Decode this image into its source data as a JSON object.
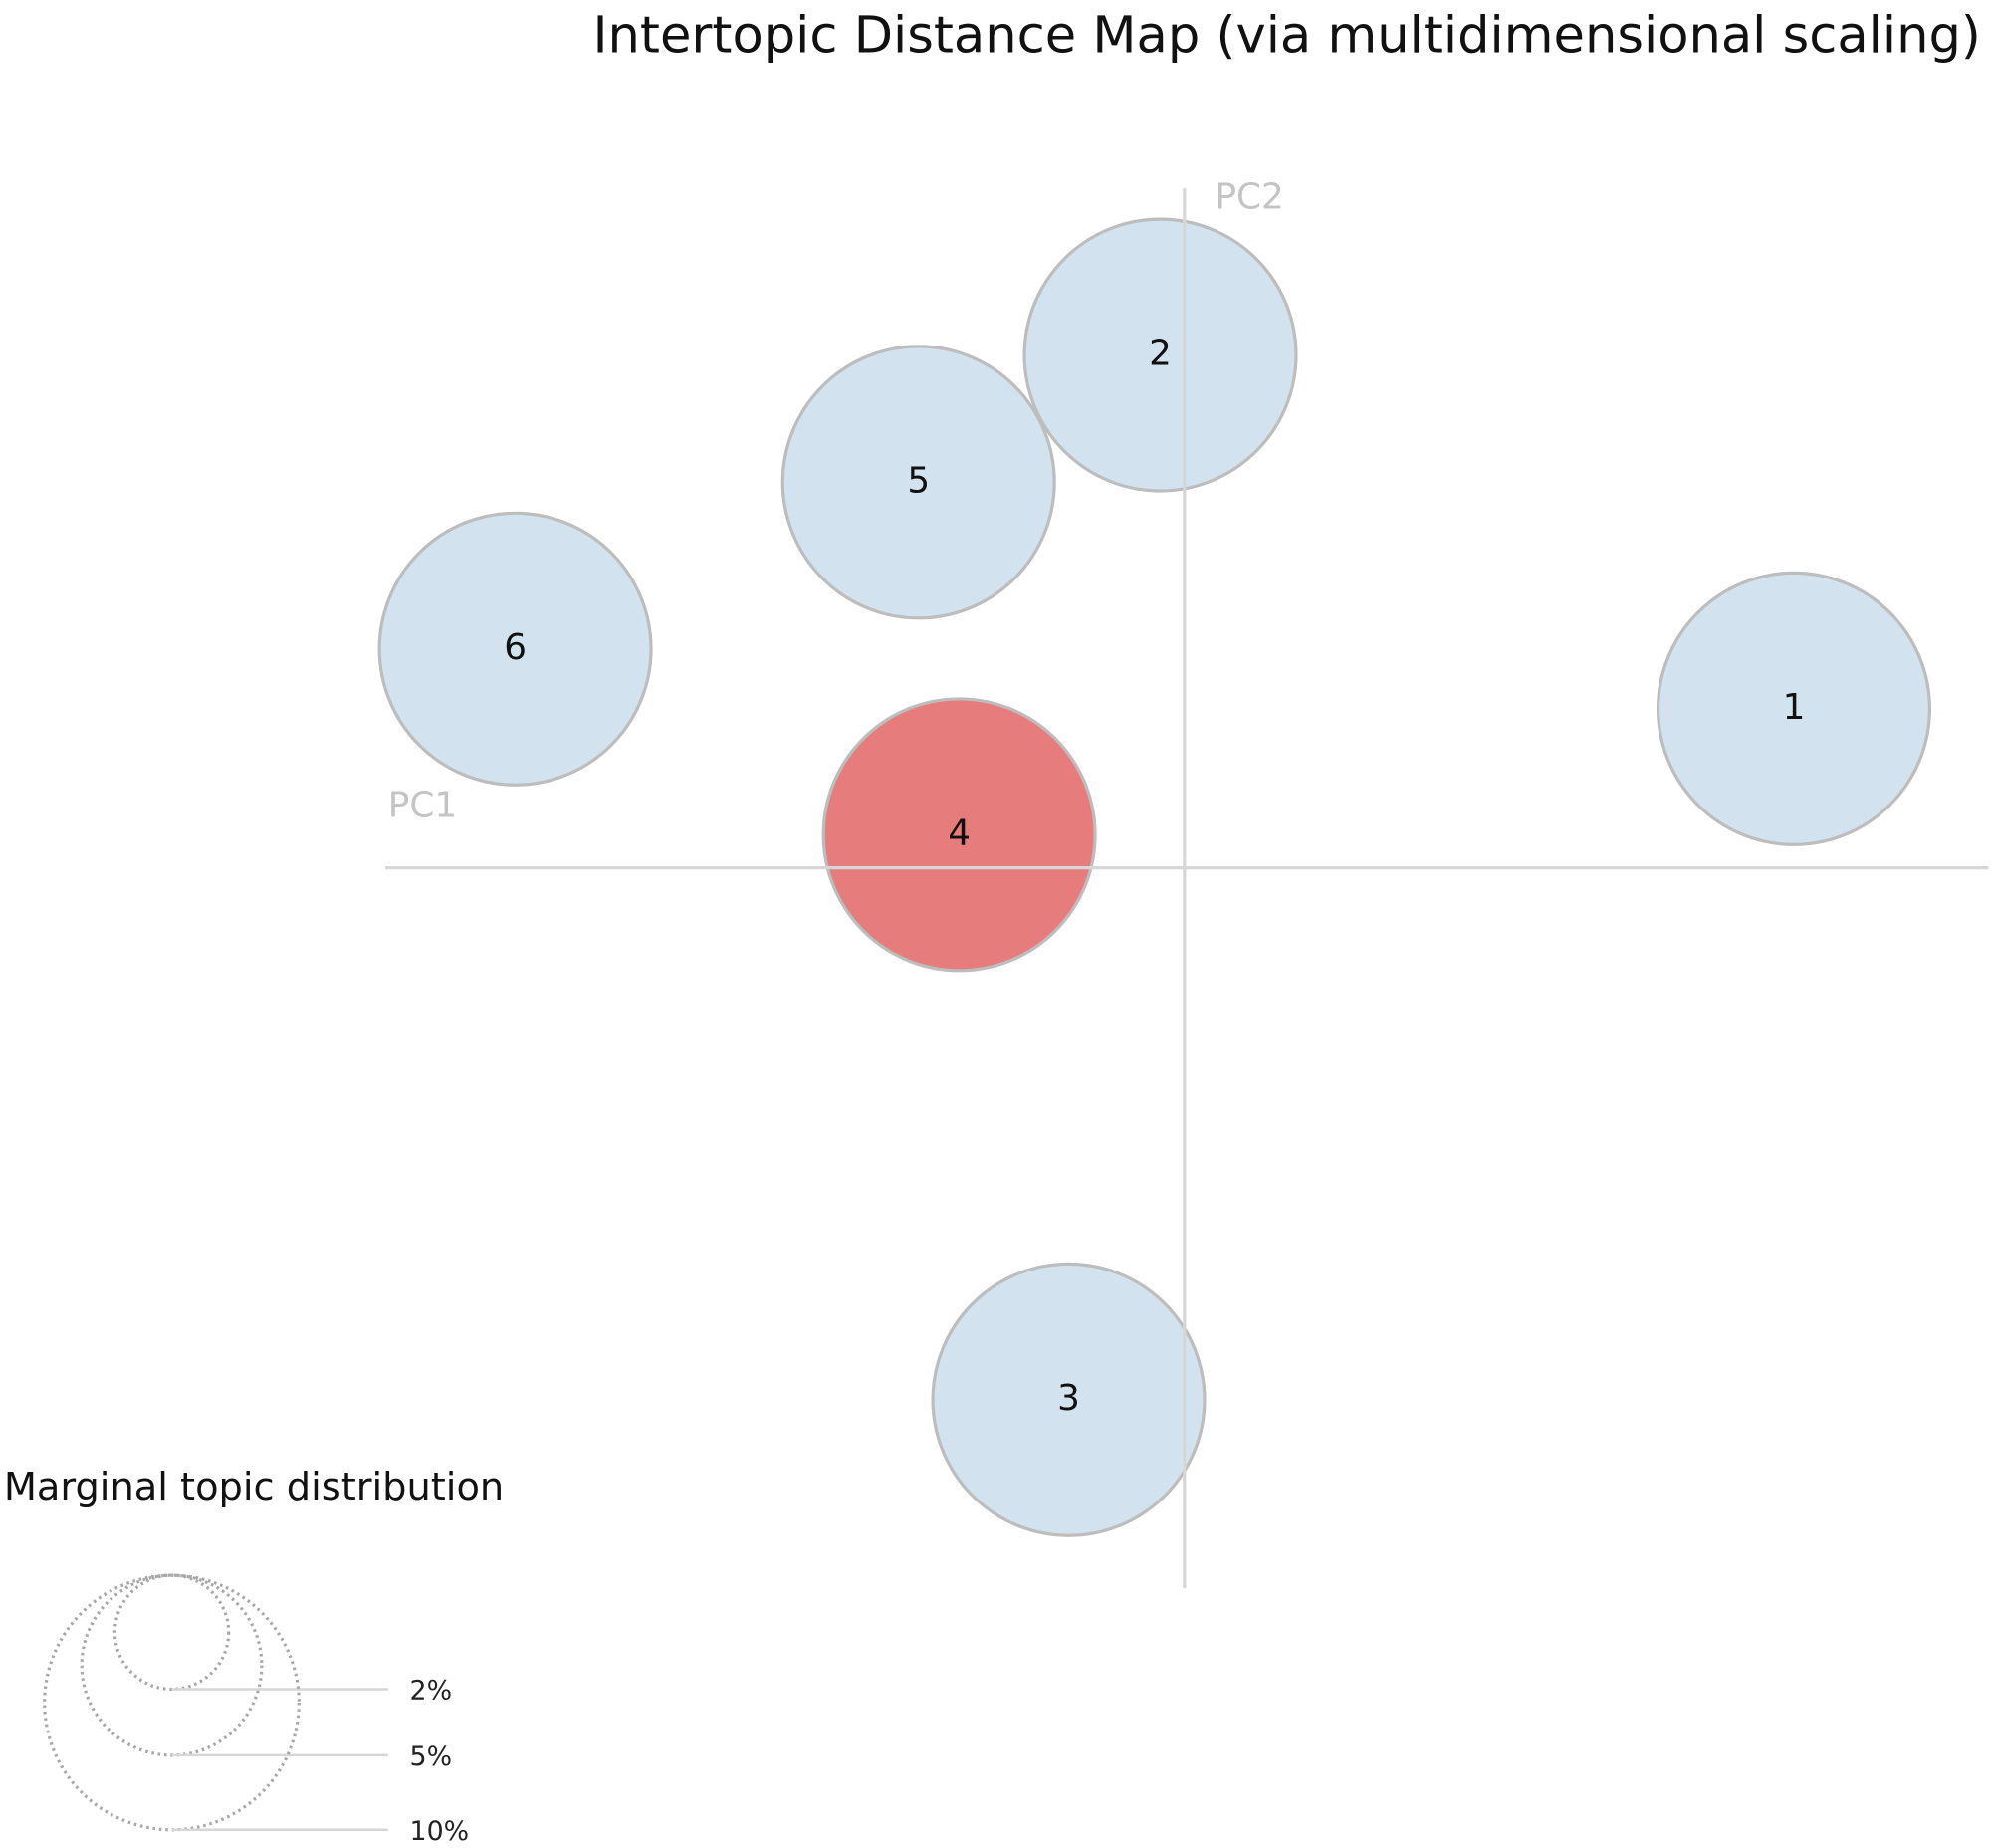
{
  "chart_data": {
    "type": "bubble",
    "title": "Intertopic Distance Map (via multidimensional scaling)",
    "xlabel": "PC1",
    "ylabel": "PC2",
    "xlim": [
      -0.314,
      0.316
    ],
    "ylim": [
      -0.283,
      0.267
    ],
    "labels": [
      "1",
      "2",
      "3",
      "4",
      "5",
      "6"
    ],
    "x": [
      0.2395,
      -0.0095,
      -0.0455,
      -0.0885,
      -0.1045,
      -0.263
    ],
    "y": [
      0.0625,
      0.2015,
      -0.209,
      0.013,
      0.1515,
      0.086
    ],
    "sizes": [
      11.4,
      11.4,
      11.4,
      11.4,
      11.4,
      11.4
    ],
    "colors": [
      "#d2e3ef",
      "#d2e3ef",
      "#d2e3ef",
      "#e67c7c",
      "#d2e3ef",
      "#d2e3ef"
    ],
    "legend": {
      "title": "Marginal topic distribution",
      "sizes": [
        {
          "value": 2,
          "label": "2%"
        },
        {
          "value": 5,
          "label": "5%"
        },
        {
          "value": 10,
          "label": "10%"
        }
      ]
    }
  }
}
